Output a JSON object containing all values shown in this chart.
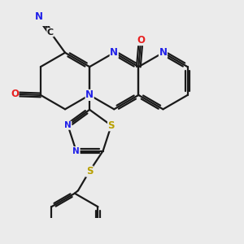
{
  "bg_color": "#ebebeb",
  "bond_color": "#1a1a1a",
  "bond_width": 1.6,
  "atom_colors": {
    "N": "#2020e8",
    "O": "#e82020",
    "S": "#b8a000",
    "C": "#1a1a1a"
  },
  "font_size": 8.5,
  "figsize": [
    3.0,
    3.0
  ],
  "dpi": 100,
  "xlim": [
    0.5,
    5.8
  ],
  "ylim": [
    0.3,
    4.5
  ]
}
